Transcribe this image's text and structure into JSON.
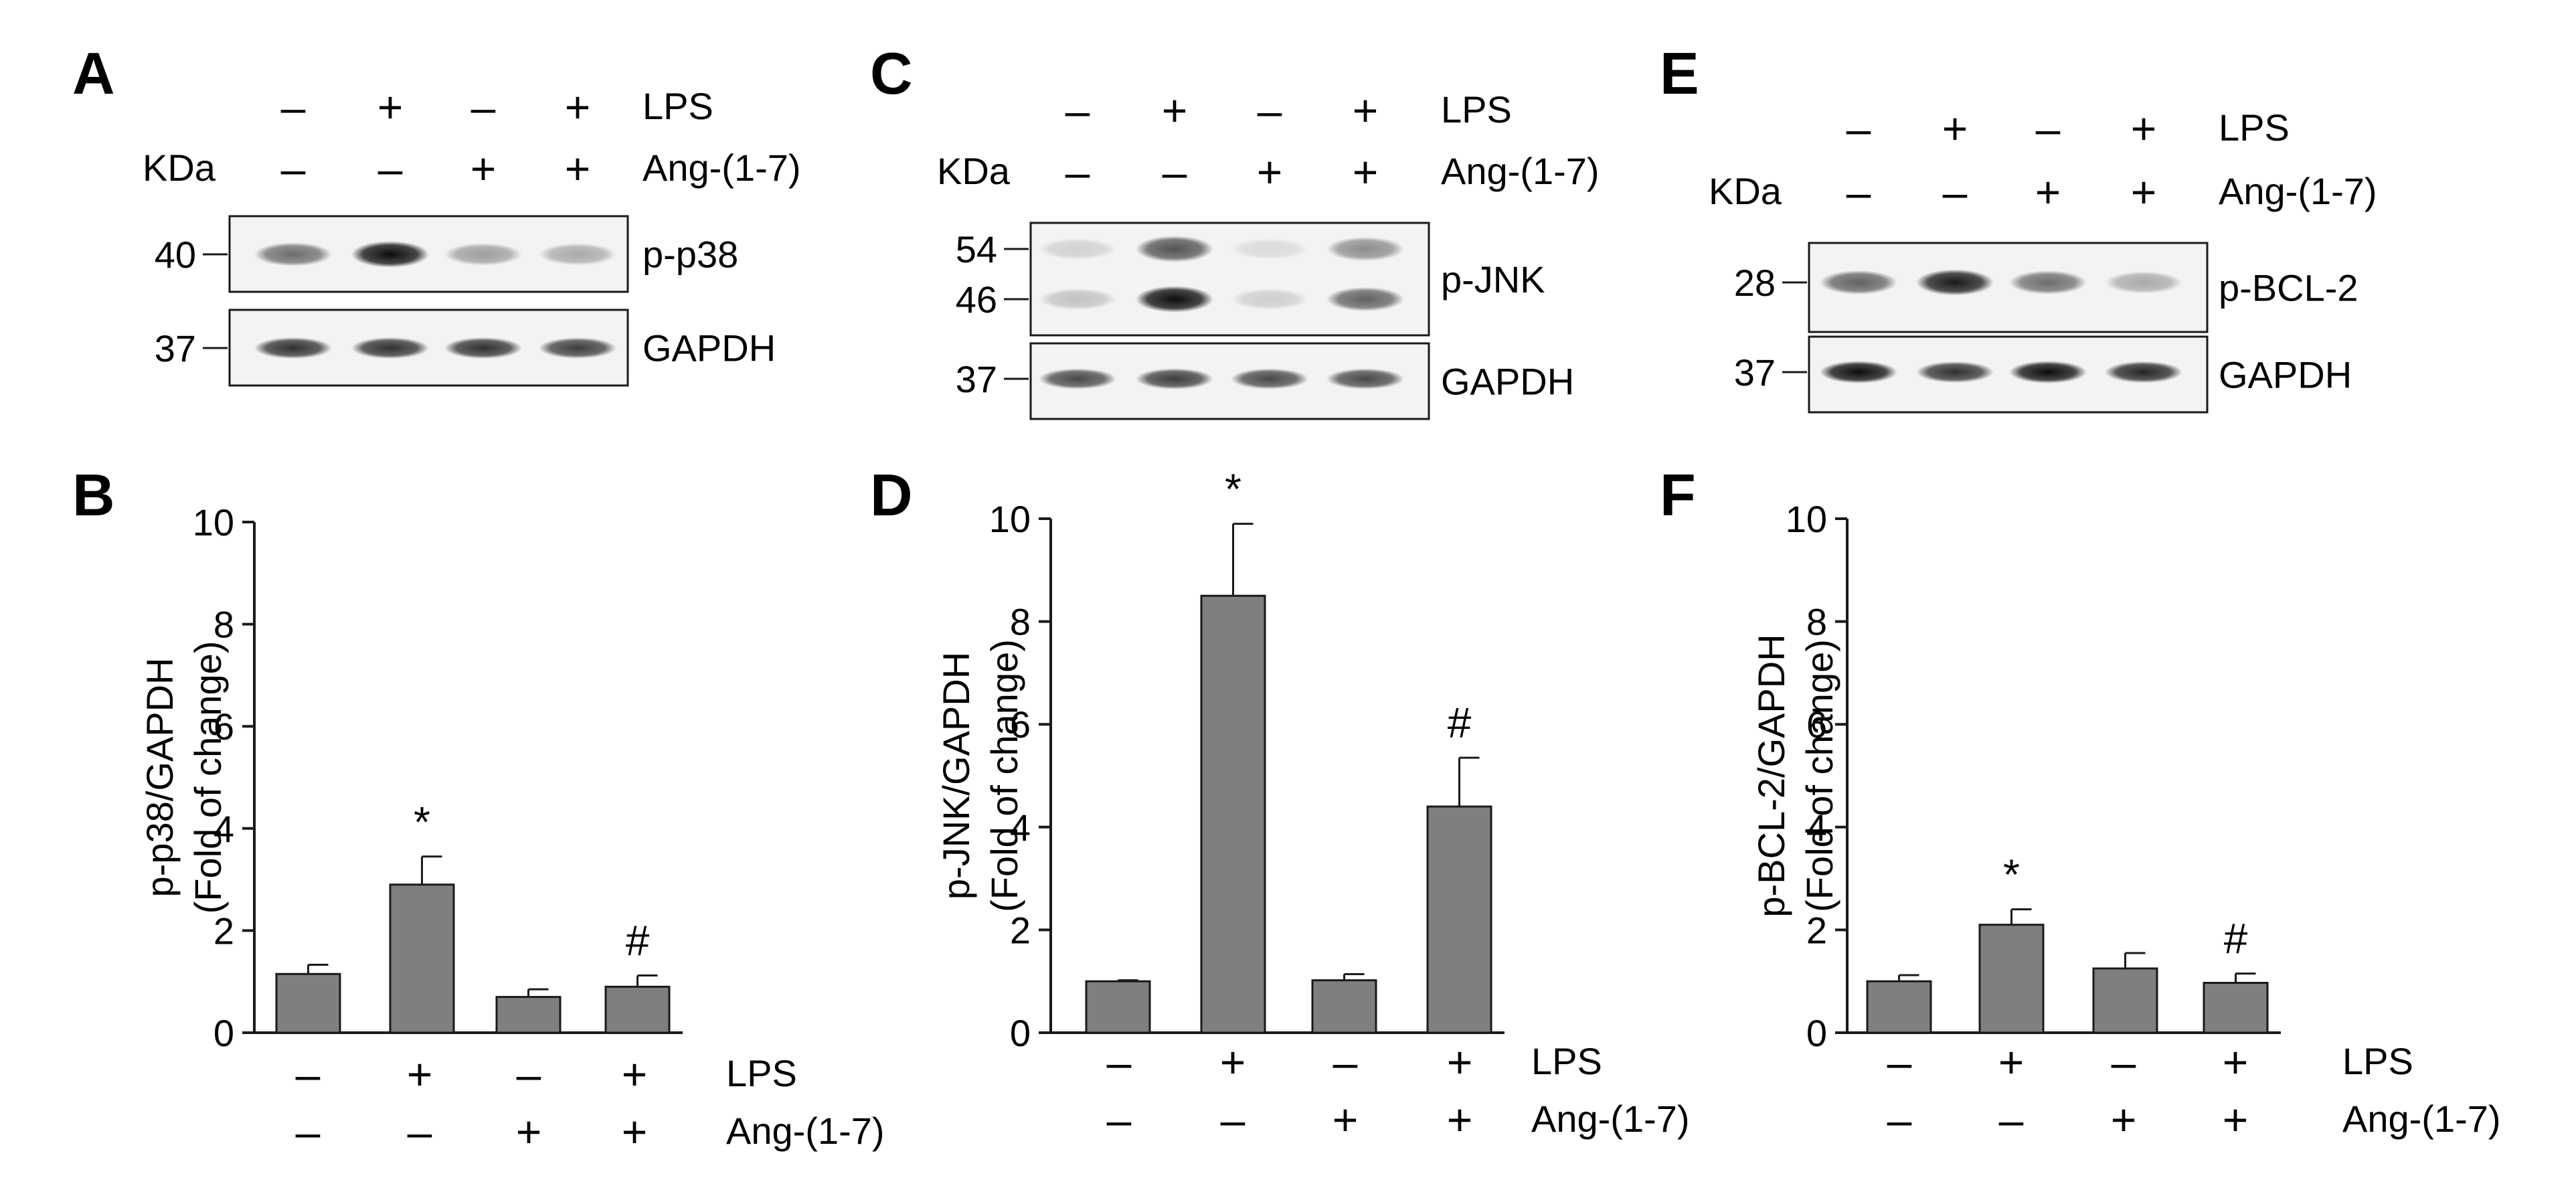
{
  "figure": {
    "panels": [
      {
        "letter": "A"
      },
      {
        "letter": "B"
      },
      {
        "letter": "C"
      },
      {
        "letter": "D"
      },
      {
        "letter": "E"
      },
      {
        "letter": "F"
      }
    ]
  },
  "blots": [
    {
      "letter": "A",
      "lps_label": "LPS",
      "ang_label": "Ang-(1-7)",
      "kda_label": "KDa",
      "lps": [
        "–",
        "+",
        "–",
        "+"
      ],
      "ang": [
        "–",
        "–",
        "+",
        "+"
      ],
      "rows": [
        {
          "label": "p-p38",
          "markers": [
            "40"
          ],
          "intensity": [
            0.55,
            0.95,
            0.35,
            0.3
          ]
        },
        {
          "label": "GAPDH",
          "markers": [
            "37"
          ],
          "intensity": [
            0.8,
            0.8,
            0.8,
            0.75
          ]
        }
      ]
    },
    {
      "letter": "C",
      "lps_label": "LPS",
      "ang_label": "Ang-(1-7)",
      "kda_label": "KDa",
      "lps": [
        "–",
        "+",
        "–",
        "+"
      ],
      "ang": [
        "–",
        "–",
        "+",
        "+"
      ],
      "rows": [
        {
          "label": "p-JNK",
          "markers": [
            "54",
            "46"
          ],
          "intensity": [
            0.2,
            0.95,
            0.15,
            0.6
          ]
        },
        {
          "label": "GAPDH",
          "markers": [
            "37"
          ],
          "intensity": [
            0.7,
            0.75,
            0.7,
            0.7
          ]
        }
      ]
    },
    {
      "letter": "E",
      "lps_label": "LPS",
      "ang_label": "Ang-(1-7)",
      "kda_label": "KDa",
      "lps": [
        "–",
        "+",
        "–",
        "+"
      ],
      "ang": [
        "–",
        "–",
        "+",
        "+"
      ],
      "rows": [
        {
          "label": "p-BCL-2",
          "markers": [
            "28"
          ],
          "intensity": [
            0.6,
            0.9,
            0.55,
            0.3
          ]
        },
        {
          "label": "GAPDH",
          "markers": [
            "37"
          ],
          "intensity": [
            0.95,
            0.8,
            0.95,
            0.85
          ]
        }
      ]
    }
  ],
  "chart_data": [
    {
      "type": "bar",
      "panel": "B",
      "ylabel_line1": "p-p38/GAPDH",
      "ylabel_line2": "(Fold of change)",
      "ylim": [
        0,
        10
      ],
      "yticks": [
        "0",
        "2",
        "4",
        "6",
        "8",
        "10"
      ],
      "values": [
        1.15,
        2.9,
        0.7,
        0.9
      ],
      "errors": [
        0.18,
        0.55,
        0.15,
        0.22
      ],
      "significance": [
        "",
        "*",
        "",
        "#"
      ],
      "lps_label": "LPS",
      "ang_label": "Ang-(1-7)",
      "lps": [
        "–",
        "+",
        "–",
        "+"
      ],
      "ang": [
        "–",
        "–",
        "+",
        "+"
      ],
      "bar_color": "#7f7f7f"
    },
    {
      "type": "bar",
      "panel": "D",
      "ylabel_line1": "p-JNK/GAPDH",
      "ylabel_line2": "(Fold of change)",
      "ylim": [
        0,
        10
      ],
      "yticks": [
        "0",
        "2",
        "4",
        "6",
        "8",
        "10"
      ],
      "values": [
        1.0,
        8.5,
        1.02,
        4.4
      ],
      "errors": [
        0.02,
        1.4,
        0.12,
        0.95
      ],
      "significance": [
        "",
        "*",
        "",
        "#"
      ],
      "lps_label": "LPS",
      "ang_label": "Ang-(1-7)",
      "lps": [
        "–",
        "+",
        "–",
        "+"
      ],
      "ang": [
        "–",
        "–",
        "+",
        "+"
      ],
      "bar_color": "#7f7f7f"
    },
    {
      "type": "bar",
      "panel": "F",
      "ylabel_line1": "p-BCL-2/GAPDH",
      "ylabel_line2": "(Fold of change)",
      "ylim": [
        0,
        10
      ],
      "yticks": [
        "0",
        "2",
        "4",
        "6",
        "8",
        "10"
      ],
      "values": [
        1.0,
        2.1,
        1.25,
        0.97
      ],
      "errors": [
        0.12,
        0.3,
        0.3,
        0.18
      ],
      "significance": [
        "",
        "*",
        "",
        "#"
      ],
      "lps_label": "LPS",
      "ang_label": "Ang-(1-7)",
      "lps": [
        "–",
        "+",
        "–",
        "+"
      ],
      "ang": [
        "–",
        "–",
        "+",
        "+"
      ],
      "bar_color": "#7f7f7f"
    }
  ]
}
